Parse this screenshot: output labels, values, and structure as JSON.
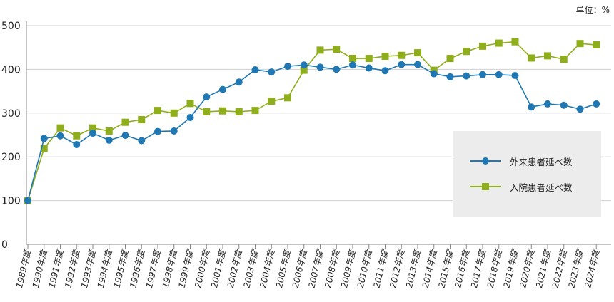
{
  "unit_label": "単位：%",
  "legend": {
    "outpatient": "外来患者延べ数",
    "inpatient": "入院患者延べ数"
  },
  "colors": {
    "outpatient": "#1f78b4",
    "inpatient": "#8fae1b",
    "grid": "#cfcfcf",
    "legend_bg": "#ececec"
  },
  "chart_data": {
    "type": "line",
    "ylim": [
      0,
      500
    ],
    "yticks": [
      0,
      100,
      200,
      300,
      400,
      500
    ],
    "grid": true,
    "legend_position": "right",
    "categories": [
      "1989年度",
      "1990年度",
      "1991年度",
      "1992年度",
      "1993年度",
      "1994年度",
      "1995年度",
      "1996年度",
      "1997年度",
      "1998年度",
      "1999年度",
      "2000年度",
      "2001年度",
      "2002年度",
      "2003年度",
      "2004年度",
      "2005年度",
      "2006年度",
      "2007年度",
      "2008年度",
      "2009年度",
      "2010年度",
      "2011年度",
      "2012年度",
      "2013年度",
      "2014年度",
      "2015年度",
      "2016年度",
      "2017年度",
      "2018年度",
      "2019年度",
      "2020年度",
      "2021年度",
      "2022年度",
      "2023年度",
      "2024年度"
    ],
    "series": [
      {
        "name": "外来患者延べ数",
        "marker": "circle",
        "values": [
          100,
          242,
          248,
          228,
          254,
          238,
          249,
          237,
          258,
          259,
          290,
          337,
          354,
          371,
          399,
          394,
          407,
          410,
          405,
          400,
          410,
          403,
          397,
          411,
          411,
          390,
          383,
          385,
          388,
          388,
          386,
          314,
          321,
          318,
          309,
          321
        ]
      },
      {
        "name": "入院患者延べ数",
        "marker": "square",
        "values": [
          100,
          219,
          266,
          248,
          266,
          259,
          279,
          285,
          306,
          300,
          322,
          303,
          305,
          303,
          306,
          327,
          335,
          398,
          444,
          446,
          425,
          425,
          430,
          432,
          438,
          398,
          425,
          441,
          453,
          460,
          463,
          426,
          431,
          423,
          459,
          456
        ]
      }
    ]
  }
}
